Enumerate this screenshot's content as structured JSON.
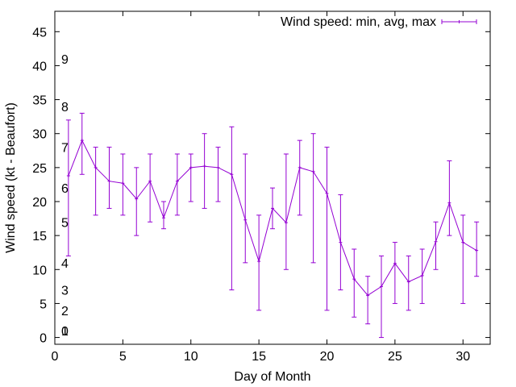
{
  "chart_data": {
    "type": "line",
    "xlabel": "Day of Month",
    "ylabel": "Wind speed (kt - Beaufort)",
    "xlim": [
      0,
      32
    ],
    "ylim": [
      -1,
      48
    ],
    "xticks": [
      0,
      5,
      10,
      15,
      20,
      25,
      30
    ],
    "yticks": [
      0,
      5,
      10,
      15,
      20,
      25,
      30,
      35,
      40,
      45
    ],
    "grid": false,
    "legend_position": "top-right",
    "beaufort_scale": [
      {
        "label": "0",
        "value": 1
      },
      {
        "label": "1",
        "value": 1
      },
      {
        "label": "2",
        "value": 4
      },
      {
        "label": "3",
        "value": 7
      },
      {
        "label": "4",
        "value": 11
      },
      {
        "label": "5",
        "value": 17
      },
      {
        "label": "6",
        "value": 22
      },
      {
        "label": "7",
        "value": 28
      },
      {
        "label": "8",
        "value": 34
      },
      {
        "label": "9",
        "value": 41
      }
    ],
    "series": [
      {
        "name": "Wind speed: min, avg, max",
        "color": "#9400d3",
        "x": [
          1,
          2,
          3,
          4,
          5,
          6,
          7,
          8,
          9,
          10,
          11,
          12,
          13,
          14,
          15,
          16,
          17,
          18,
          19,
          20,
          21,
          22,
          23,
          24,
          25,
          26,
          27,
          28,
          29,
          30,
          31
        ],
        "avg": [
          23.8,
          29,
          25,
          23,
          22.7,
          20.4,
          23,
          17.6,
          23,
          25,
          25.2,
          25,
          24,
          17.3,
          11.2,
          19,
          16.9,
          25,
          24.4,
          21.2,
          14,
          8.6,
          6.2,
          7.5,
          10.9,
          8.2,
          9.1,
          14.1,
          19.8,
          14,
          12.8
        ],
        "min": [
          12,
          24,
          18,
          19,
          18,
          15,
          17,
          16,
          18,
          20,
          19,
          20,
          7,
          11,
          4,
          16,
          10,
          18,
          11,
          4,
          7,
          3,
          2,
          0,
          5,
          4,
          5,
          10,
          15,
          5,
          9
        ],
        "max": [
          32,
          33,
          28,
          28,
          27,
          25,
          27,
          20,
          27,
          27,
          30,
          28,
          31,
          27,
          18,
          22,
          27,
          29,
          30,
          28,
          21,
          13,
          9,
          12,
          14,
          12,
          13,
          17,
          26,
          18,
          17
        ]
      }
    ]
  }
}
